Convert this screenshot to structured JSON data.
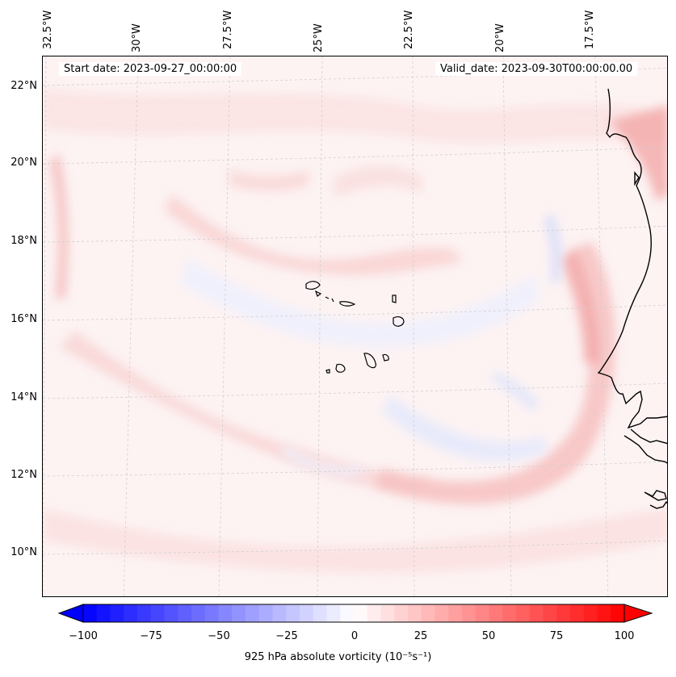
{
  "header": {
    "start_date": "Start date: 2023-09-27_00:00:00",
    "valid_date": "Valid_date: 2023-09-30T00:00:00.00"
  },
  "map": {
    "type": "contour-filled",
    "variable": "925 hPa absolute vorticity",
    "region": "Eastern tropical Atlantic, Cape Verde Islands and West African coast",
    "longitude_labels": [
      "32.5°W",
      "30°W",
      "27.5°W",
      "25°W",
      "22.5°W",
      "20°W",
      "17.5°W"
    ],
    "latitude_labels": [
      "22°N",
      "20°N",
      "18°N",
      "16°N",
      "14°N",
      "12°N",
      "10°N"
    ],
    "gridlines": true,
    "colormap": "bwr"
  },
  "colorbar": {
    "label": "925 hPa absolute vorticity (10⁻⁵s⁻¹)",
    "ticks": [
      "−100",
      "−75",
      "−50",
      "−25",
      "0",
      "25",
      "50",
      "75",
      "100"
    ],
    "range": [
      -100,
      100
    ],
    "color_min": "#0000ff",
    "color_mid": "#ffffff",
    "color_max": "#ff0000"
  }
}
